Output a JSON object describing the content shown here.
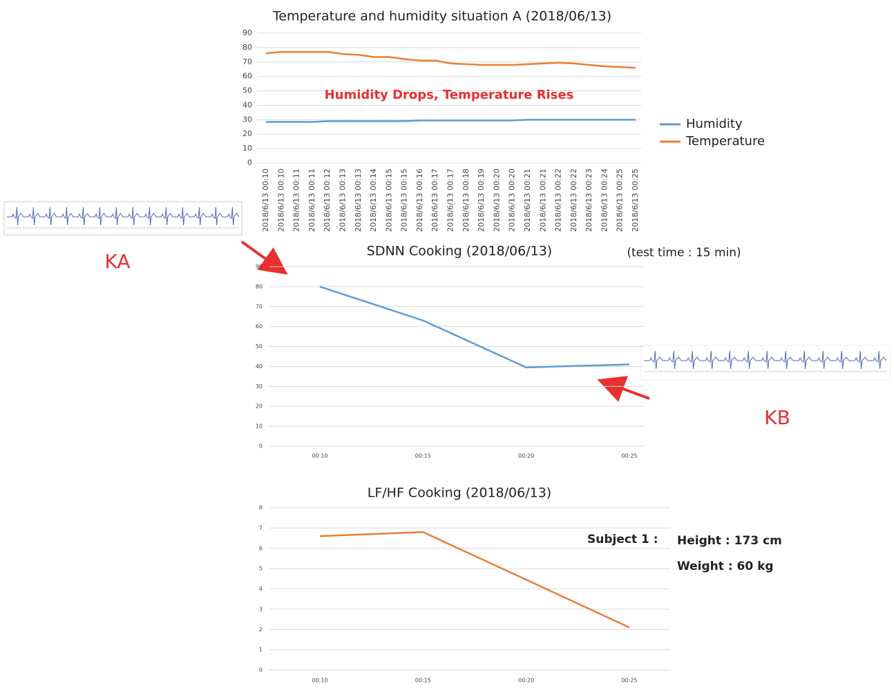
{
  "chart_data": [
    {
      "type": "line",
      "title": "Temperature and humidity situation A (2018/06/13)",
      "categories": [
        "2018/6/13 00:10",
        "2018/6/13 00:10",
        "2018/6/13 00:11",
        "2018/6/13 00:11",
        "2018/6/13 00:12",
        "2018/6/13 00:13",
        "2018/6/13 00:13",
        "2018/6/13 00:14",
        "2018/6/13 00:15",
        "2018/6/13 00:15",
        "2018/6/13 00:16",
        "2018/6/13 00:17",
        "2018/6/13 00:17",
        "2018/6/13 00:18",
        "2018/6/13 00:19",
        "2018/6/13 00:20",
        "2018/6/13 00:20",
        "2018/6/13 00:21",
        "2018/6/13 00:21",
        "2018/6/13 00:22",
        "2018/6/13 00:22",
        "2018/6/13 00:23",
        "2018/6/13 00:24",
        "2018/6/13 00:25",
        "2018/6/13 00:25"
      ],
      "series": [
        {
          "name": "Humidity",
          "color": "#5b9bd5",
          "values": [
            28.5,
            28.5,
            28.5,
            28.5,
            29,
            29,
            29,
            29,
            29,
            29,
            29.5,
            29.5,
            29.5,
            29.5,
            29.5,
            29.5,
            29.5,
            30,
            30,
            30,
            30,
            30,
            30,
            30,
            30
          ]
        },
        {
          "name": "Temperature",
          "color": "#ed7d31",
          "values": [
            76,
            77,
            77,
            77,
            77,
            75.5,
            75,
            73.5,
            73.5,
            72,
            71,
            71,
            69,
            68.5,
            68,
            68,
            68,
            68.5,
            69,
            69.5,
            69,
            68,
            67,
            66.5,
            66
          ]
        }
      ],
      "ylim": [
        0,
        90
      ],
      "yticks": [
        0,
        10,
        20,
        30,
        40,
        50,
        60,
        70,
        80,
        90
      ],
      "grid": true,
      "legend": "right",
      "annotations": [
        "Humidity Drops, Temperature Rises"
      ]
    },
    {
      "type": "line",
      "title": "SDNN Cooking (2018/06/13)",
      "categories": [
        "00:10",
        "00:15",
        "00:20",
        "00:25"
      ],
      "values": [
        80,
        63,
        39.5,
        41
      ],
      "color": "#5b9bd5",
      "ylim": [
        0,
        90
      ],
      "yticks": [
        0,
        10,
        20,
        30,
        40,
        50,
        60,
        70,
        80,
        90
      ],
      "grid": true,
      "annotations": [
        "(test time : 15 min)",
        "KA",
        "KB"
      ]
    },
    {
      "type": "line",
      "title": "LF/HF Cooking (2018/06/13)",
      "categories": [
        "00:10",
        "00:15",
        "00:20",
        "00:25"
      ],
      "values": [
        6.6,
        6.8,
        4.45,
        2.1
      ],
      "color": "#ed7d31",
      "ylim": [
        0,
        8
      ],
      "yticks": [
        0,
        1,
        2,
        3,
        4,
        5,
        6,
        7,
        8
      ],
      "grid": true,
      "annotations": [
        "Subject 1 :",
        "Height : 173 cm",
        "Weight : 60 kg"
      ]
    }
  ]
}
